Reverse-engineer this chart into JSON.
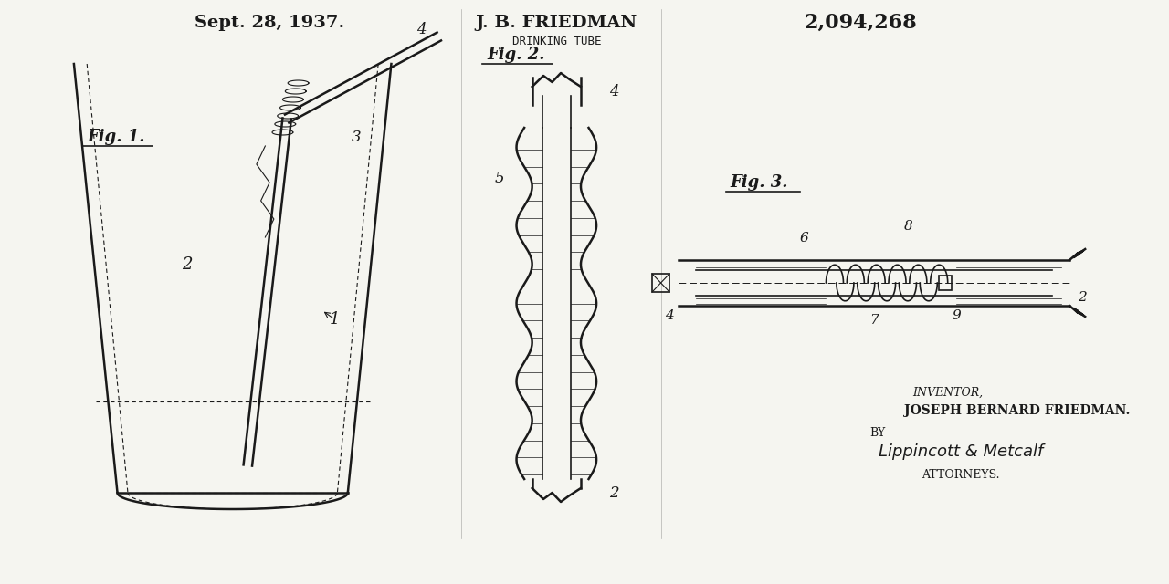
{
  "bg_color": "#f5f5f0",
  "line_color": "#1a1a1a",
  "title_date": "Sept. 28, 1937.",
  "title_inventor": "J. B. FRIEDMAN",
  "title_invention": "DRINKING TUBE",
  "patent_number": "2,094,268",
  "inventor_line": "JOSEPH BERNARD FRIEDMAN.",
  "by_line": "BY",
  "attorneys_line": "ATTORNEYS.",
  "inventor_label": "INVENTOR,",
  "fig1_label": "Fig. 1.",
  "fig2_label": "Fig. 2.",
  "fig3_label": "Fig. 3."
}
